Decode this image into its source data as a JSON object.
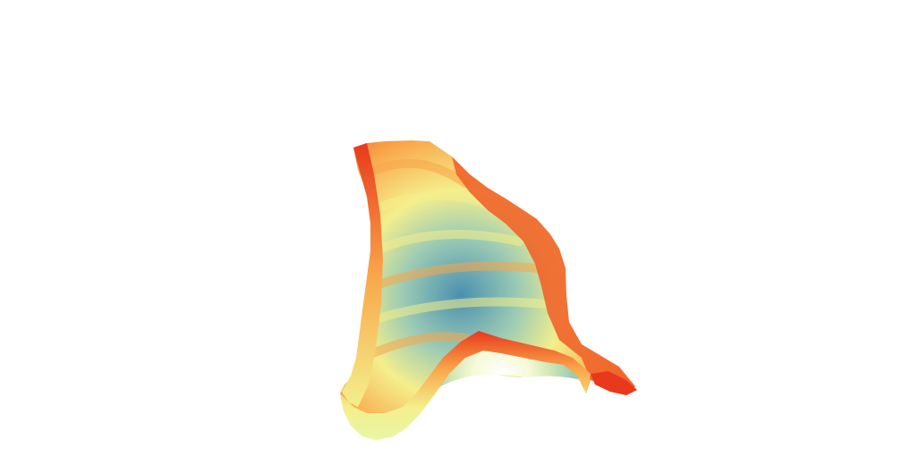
{
  "scene": {
    "background_color": "#ffffff",
    "subject": "terrain-surface",
    "colormap": {
      "low": "#4a90b0",
      "mid_low": "#9ccbb4",
      "mid": "#f4ef8c",
      "mid_high": "#f9a64a",
      "high": "#e8391c"
    }
  }
}
